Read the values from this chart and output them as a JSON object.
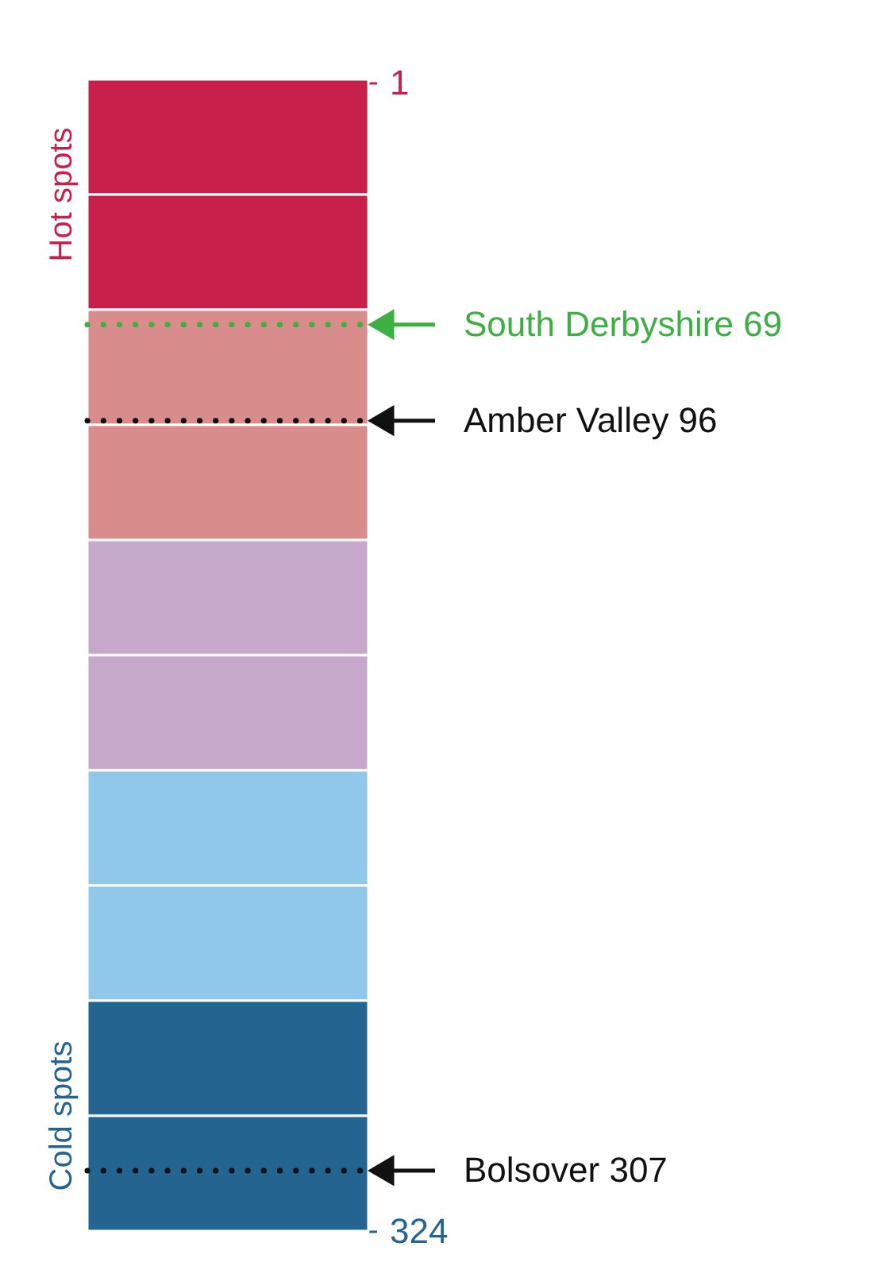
{
  "chart_data": {
    "type": "bar",
    "stacked": true,
    "categories": [
      null
    ],
    "ylim": [
      324,
      0
    ],
    "yticks": [
      1,
      324
    ],
    "series": [
      {
        "color": "#c8204a",
        "values": [
          32.4
        ]
      },
      {
        "color": "#c8204a",
        "values": [
          32.4
        ]
      },
      {
        "color": "#d98c8c",
        "values": [
          32.4
        ]
      },
      {
        "color": "#d98c8c",
        "values": [
          32.4
        ]
      },
      {
        "color": "#c6a8cb",
        "values": [
          32.4
        ]
      },
      {
        "color": "#c6a8cb",
        "values": [
          32.4
        ]
      },
      {
        "color": "#90c8ec",
        "values": [
          32.4
        ]
      },
      {
        "color": "#90c8ec",
        "values": [
          32.4
        ]
      },
      {
        "color": "#236590",
        "values": [
          32.4
        ]
      },
      {
        "color": "#236590",
        "values": [
          32.4
        ]
      }
    ],
    "ref_lines": [
      {
        "axis": "y",
        "value": 69,
        "label": "South Derbyshire 69",
        "color": "#3cb043",
        "line_style": "dotted"
      },
      {
        "axis": "y",
        "value": 96,
        "label": "Amber Valley 96",
        "color": "#111111",
        "line_style": "dotted"
      },
      {
        "axis": "y",
        "value": 307,
        "label": "Bolsover 307",
        "color": "#111111",
        "line_style": "dotted"
      }
    ],
    "annotations": [
      "Hot spots",
      "Cold spots"
    ]
  }
}
